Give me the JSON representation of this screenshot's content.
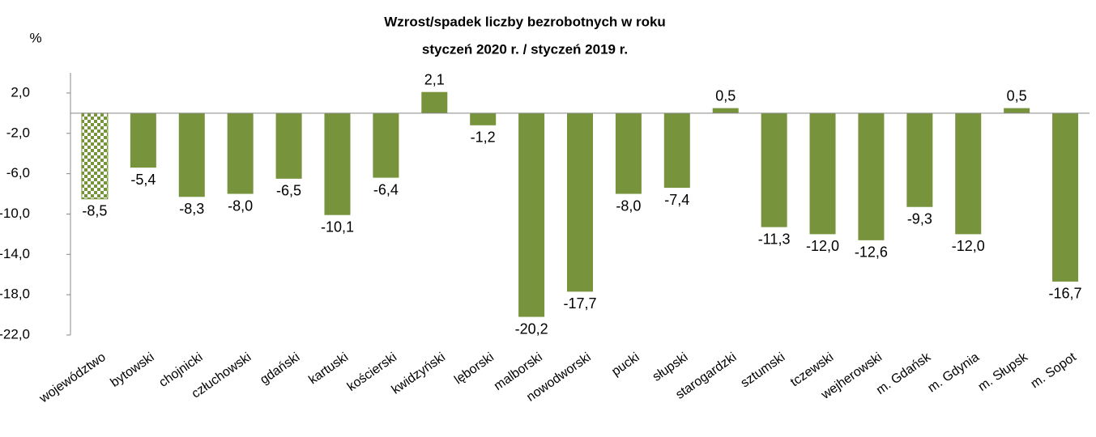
{
  "chart_data": {
    "type": "bar",
    "title": [
      "Wzrost/spadek liczby bezrobotnych w roku",
      "styczeń 2020 r. / styczeń 2019 r."
    ],
    "y_label": "%",
    "categories": [
      "województwo",
      "bytowski",
      "chojnicki",
      "człuchowski",
      "gdański",
      "kartuski",
      "kościerski",
      "kwidzyński",
      "lęborski",
      "malborski",
      "nowodworski",
      "pucki",
      "słupski",
      "starogardzki",
      "sztumski",
      "tczewski",
      "wejherowski",
      "m. Gdańsk",
      "m. Gdynia",
      "m. Słupsk",
      "m. Sopot"
    ],
    "values": [
      -8.5,
      -5.4,
      -8.3,
      -8.0,
      -6.5,
      -10.1,
      -6.4,
      2.1,
      -1.2,
      -20.2,
      -17.7,
      -8.0,
      -7.4,
      0.5,
      -11.3,
      -12.0,
      -12.6,
      -9.3,
      -12.0,
      0.5,
      -16.7
    ],
    "value_labels": [
      "-8,5",
      "-5,4",
      "-8,3",
      "-8,0",
      "-6,5",
      "-10,1",
      "-6,4",
      "2,1",
      "-1,2",
      "-20,2",
      "-17,7",
      "-8,0",
      "-7,4",
      "0,5",
      "-11,3",
      "-12,0",
      "-12,6",
      "-9,3",
      "-12,0",
      "0,5",
      "-16,7"
    ],
    "color": "#77933c",
    "ylim": [
      -22,
      4
    ],
    "yticks": [
      {
        "value": 2,
        "label": "2,0"
      },
      {
        "value": -2,
        "label": "-2,0"
      },
      {
        "value": -6,
        "label": "-6,0"
      },
      {
        "value": -10,
        "label": "-10,0"
      },
      {
        "value": -14,
        "label": "-14,0"
      },
      {
        "value": -18,
        "label": "-18,0"
      },
      {
        "value": -22,
        "label": "-22,0"
      }
    ],
    "grid": false
  }
}
